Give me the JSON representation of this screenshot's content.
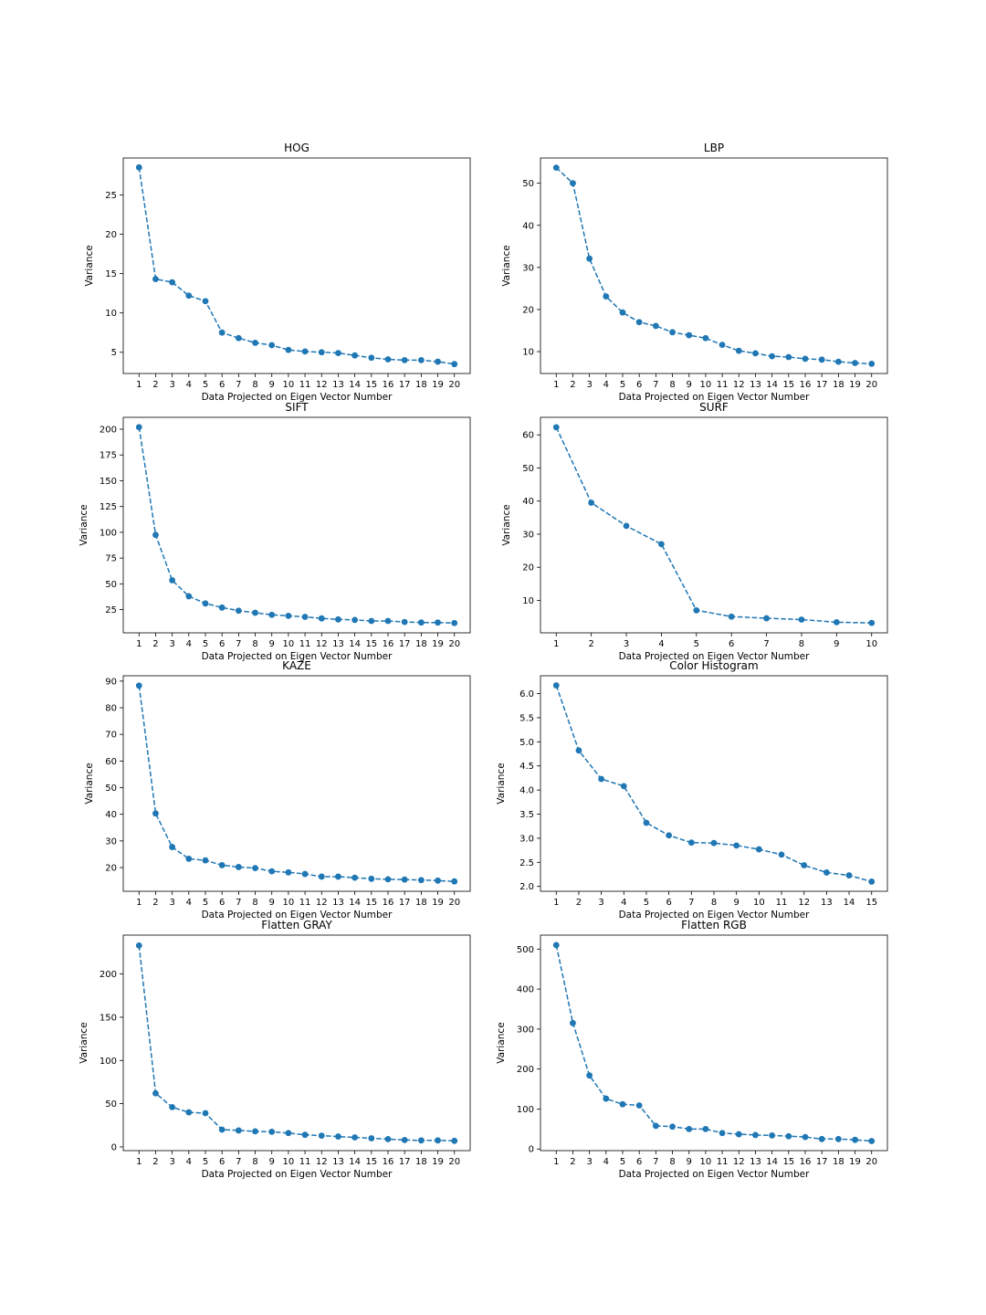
{
  "figure": {
    "background": "#ffffff",
    "series_color": "#1f77b4"
  },
  "chart_data": [
    {
      "type": "line",
      "title": "HOG",
      "xlabel": "Data Projected on Eigen Vector Number",
      "ylabel": "Variance",
      "x": [
        1,
        2,
        3,
        4,
        5,
        6,
        7,
        8,
        9,
        10,
        11,
        12,
        13,
        14,
        15,
        16,
        17,
        18,
        19,
        20
      ],
      "values": [
        28.5,
        14.3,
        13.9,
        12.2,
        11.5,
        7.5,
        6.8,
        6.2,
        5.9,
        5.3,
        5.1,
        5.0,
        4.9,
        4.6,
        4.3,
        4.1,
        4.0,
        4.0,
        3.8,
        3.5
      ],
      "yticks": [
        5,
        10,
        15,
        20,
        25
      ],
      "ylim": [
        2.3,
        29.7
      ],
      "xlim": [
        0.05,
        20.95
      ],
      "line_style": "dashed",
      "marker": "circle",
      "grid": false
    },
    {
      "type": "line",
      "title": "LBP",
      "xlabel": "Data Projected on Eigen Vector Number",
      "ylabel": "Variance",
      "x": [
        1,
        2,
        3,
        4,
        5,
        6,
        7,
        8,
        9,
        10,
        11,
        12,
        13,
        14,
        15,
        16,
        17,
        18,
        19,
        20
      ],
      "values": [
        53.7,
        50.0,
        32.1,
        23.1,
        19.3,
        17.0,
        16.1,
        14.6,
        13.9,
        13.2,
        11.6,
        10.2,
        9.6,
        8.9,
        8.7,
        8.3,
        8.1,
        7.6,
        7.3,
        7.1
      ],
      "yticks": [
        10,
        20,
        30,
        40,
        50
      ],
      "ylim": [
        4.8,
        56.0
      ],
      "xlim": [
        0.05,
        20.95
      ],
      "line_style": "dashed",
      "marker": "circle",
      "grid": false
    },
    {
      "type": "line",
      "title": "SIFT",
      "xlabel": "Data Projected on Eigen Vector Number",
      "ylabel": "Variance",
      "x": [
        1,
        2,
        3,
        4,
        5,
        6,
        7,
        8,
        9,
        10,
        11,
        12,
        13,
        14,
        15,
        16,
        17,
        18,
        19,
        20
      ],
      "values": [
        202,
        97.5,
        53.5,
        38,
        31,
        27,
        24,
        22,
        20,
        19,
        18,
        16.5,
        15.5,
        15,
        14,
        14,
        13,
        12.5,
        12.5,
        12
      ],
      "yticks": [
        25,
        50,
        75,
        100,
        125,
        150,
        175,
        200
      ],
      "ylim": [
        2.5,
        211.5
      ],
      "xlim": [
        0.05,
        20.95
      ],
      "line_style": "dashed",
      "marker": "circle",
      "grid": false
    },
    {
      "type": "line",
      "title": "SURF",
      "xlabel": "Data Projected on Eigen Vector Number",
      "ylabel": "Variance",
      "x": [
        1,
        2,
        3,
        4,
        5,
        6,
        7,
        8,
        9,
        10
      ],
      "values": [
        62.3,
        39.5,
        32.5,
        27.0,
        7.0,
        5.1,
        4.6,
        4.2,
        3.4,
        3.2
      ],
      "yticks": [
        10,
        20,
        30,
        40,
        50,
        60
      ],
      "ylim": [
        0.2,
        65.3
      ],
      "xlim": [
        0.55,
        10.45
      ],
      "line_style": "dashed",
      "marker": "circle",
      "grid": false
    },
    {
      "type": "line",
      "title": "KAZE",
      "xlabel": "Data Projected on Eigen Vector Number",
      "ylabel": "Variance",
      "x": [
        1,
        2,
        3,
        4,
        5,
        6,
        7,
        8,
        9,
        10,
        11,
        12,
        13,
        14,
        15,
        16,
        17,
        18,
        19,
        20
      ],
      "values": [
        88.3,
        40.3,
        27.7,
        23.3,
        22.7,
        20.9,
        20.2,
        19.8,
        18.6,
        18.2,
        17.6,
        16.6,
        16.6,
        16.2,
        15.8,
        15.6,
        15.5,
        15.3,
        15.1,
        14.8
      ],
      "yticks": [
        20,
        30,
        40,
        50,
        60,
        70,
        80,
        90
      ],
      "ylim": [
        11.1,
        92.0
      ],
      "xlim": [
        0.05,
        20.95
      ],
      "line_style": "dashed",
      "marker": "circle",
      "grid": false
    },
    {
      "type": "line",
      "title": "Color Histogram",
      "xlabel": "Data Projected on Eigen Vector Number",
      "ylabel": "Variance",
      "x": [
        1,
        2,
        3,
        4,
        5,
        6,
        7,
        8,
        9,
        10,
        11,
        12,
        13,
        14,
        15
      ],
      "values": [
        6.17,
        4.82,
        4.23,
        4.08,
        3.32,
        3.06,
        2.91,
        2.9,
        2.85,
        2.77,
        2.66,
        2.44,
        2.29,
        2.23,
        2.1
      ],
      "yticks": [
        2.0,
        2.5,
        3.0,
        3.5,
        4.0,
        4.5,
        5.0,
        5.5,
        6.0
      ],
      "ytick_labels": [
        "2.0",
        "2.5",
        "3.0",
        "3.5",
        "4.0",
        "4.5",
        "5.0",
        "5.5",
        "6.0"
      ],
      "ylim": [
        1.9,
        6.37
      ],
      "xlim": [
        0.3,
        15.7
      ],
      "line_style": "dashed",
      "marker": "circle",
      "grid": false
    },
    {
      "type": "line",
      "title": "Flatten GRAY",
      "xlabel": "Data Projected on Eigen Vector Number",
      "ylabel": "Variance",
      "x": [
        1,
        2,
        3,
        4,
        5,
        6,
        7,
        8,
        9,
        10,
        11,
        12,
        13,
        14,
        15,
        16,
        17,
        18,
        19,
        20
      ],
      "values": [
        233,
        62,
        46,
        40,
        39,
        20,
        19,
        18,
        17.5,
        16,
        14,
        13,
        12,
        11,
        10,
        9,
        8,
        7.5,
        7.5,
        7
      ],
      "yticks": [
        0,
        50,
        100,
        150,
        200
      ],
      "ylim": [
        -4.3,
        245.0
      ],
      "xlim": [
        0.05,
        20.95
      ],
      "line_style": "dashed",
      "marker": "circle",
      "grid": false
    },
    {
      "type": "line",
      "title": "Flatten RGB",
      "xlabel": "Data Projected on Eigen Vector Number",
      "ylabel": "Variance",
      "x": [
        1,
        2,
        3,
        4,
        5,
        6,
        7,
        8,
        9,
        10,
        11,
        12,
        13,
        14,
        15,
        16,
        17,
        18,
        19,
        20
      ],
      "values": [
        510,
        315,
        184,
        126,
        112,
        109,
        58,
        56,
        50,
        50,
        40,
        37,
        35,
        34,
        32,
        30,
        25,
        25,
        23,
        20
      ],
      "yticks": [
        0,
        100,
        200,
        300,
        400,
        500
      ],
      "ylim": [
        -4,
        535
      ],
      "xlim": [
        0.05,
        20.95
      ],
      "line_style": "dashed",
      "marker": "circle",
      "grid": false
    }
  ]
}
